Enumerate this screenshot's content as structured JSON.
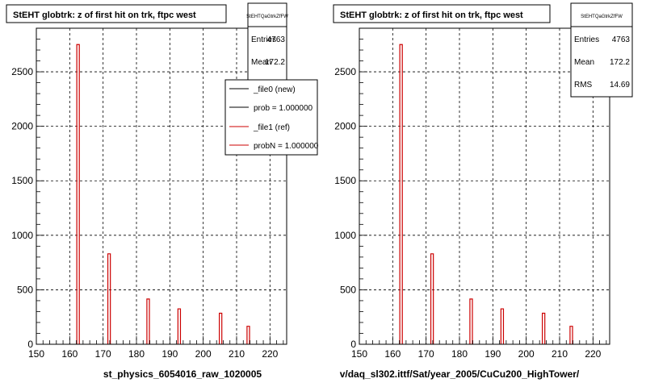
{
  "panels": [
    {
      "title": "StEHT globtrk: z of first hit on trk, ftpc west",
      "stats": {
        "name": "StEHTQaGtrkZfFW",
        "rows": [
          {
            "label": "Entries",
            "value": "4763"
          },
          {
            "label": "Mean",
            "value": "172.2"
          }
        ]
      },
      "legend": [
        {
          "label": "_file0 (new)",
          "color": "#000000"
        },
        {
          "label": "prob = 1.000000",
          "color": "#000000"
        },
        {
          "label": "_file1 (ref)",
          "color": "#cc0000"
        },
        {
          "label": "probN = 1.000000",
          "color": "#cc0000"
        }
      ],
      "xtitle": "st_physics_6054016_raw_1020005"
    },
    {
      "title": "StEHT globtrk: z of first hit on trk, ftpc west",
      "stats": {
        "name": "StEHTQaGtrkZfFW",
        "rows": [
          {
            "label": "Entries",
            "value": "4763"
          },
          {
            "label": "Mean",
            "value": "172.2"
          },
          {
            "label": "RMS",
            "value": "14.69"
          }
        ]
      },
      "legend": [],
      "xtitle": "v/daq_sl302.ittf/Sat/year_2005/CuCu200_HighTower/"
    }
  ],
  "chart_data": [
    {
      "type": "bar",
      "title": "StEHT globtrk: z of first hit on trk, ftpc west",
      "xlabel": "st_physics_6054016_raw_1020005",
      "ylabel": "",
      "xlim": [
        150,
        225
      ],
      "ylim": [
        0,
        2900
      ],
      "xticks": [
        150,
        160,
        170,
        180,
        190,
        200,
        210,
        220
      ],
      "yticks": [
        0,
        500,
        1000,
        1500,
        2000,
        2500
      ],
      "grid": true,
      "legend_position": "top-right",
      "bin_width": 0.75,
      "series": [
        {
          "name": "_file1 (ref)",
          "color": "#cc0000",
          "x": [
            162.5,
            171.8,
            183.5,
            192.8,
            205.2,
            213.5
          ],
          "values": [
            2750,
            830,
            415,
            325,
            285,
            165
          ]
        }
      ]
    },
    {
      "type": "bar",
      "title": "StEHT globtrk: z of first hit on trk, ftpc west",
      "xlabel": "v/daq_sl302.ittf/Sat/year_2005/CuCu200_HighTower/",
      "ylabel": "",
      "xlim": [
        150,
        225
      ],
      "ylim": [
        0,
        2900
      ],
      "xticks": [
        150,
        160,
        170,
        180,
        190,
        200,
        210,
        220
      ],
      "yticks": [
        0,
        500,
        1000,
        1500,
        2000,
        2500
      ],
      "grid": true,
      "legend_position": "none",
      "bin_width": 0.75,
      "series": [
        {
          "name": "",
          "color": "#cc0000",
          "x": [
            162.5,
            171.8,
            183.5,
            192.8,
            205.2,
            213.5
          ],
          "values": [
            2750,
            830,
            415,
            325,
            285,
            165
          ]
        }
      ]
    }
  ]
}
